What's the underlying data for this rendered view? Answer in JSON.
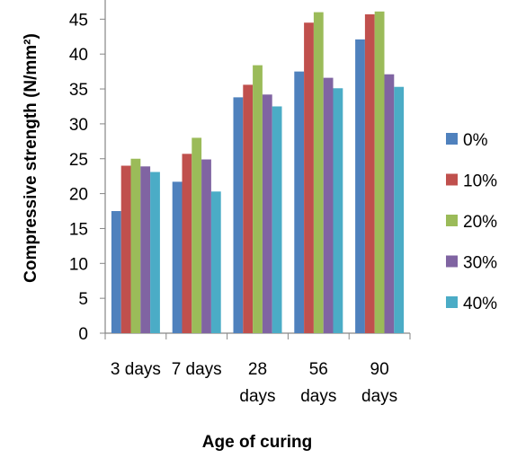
{
  "chart_data": {
    "type": "bar",
    "xlabel": "Age of curing",
    "ylabel": "Compressive strength (N/mm²)",
    "ylim": [
      0,
      45
    ],
    "y_ticks": [
      0,
      5,
      10,
      15,
      20,
      25,
      30,
      35,
      40,
      45
    ],
    "grid": false,
    "legend_position": "right",
    "categories": [
      [
        "3 days"
      ],
      [
        "7 days"
      ],
      [
        "28",
        "days"
      ],
      [
        "56",
        "days"
      ],
      [
        "90",
        "days"
      ]
    ],
    "series": [
      {
        "name": "0%",
        "color": "#4F81BD",
        "values": [
          17.5,
          21.7,
          33.8,
          37.5,
          42.1
        ]
      },
      {
        "name": "10%",
        "color": "#C0504D",
        "values": [
          24.0,
          25.7,
          35.6,
          44.5,
          45.7
        ]
      },
      {
        "name": "20%",
        "color": "#9BBB59",
        "values": [
          25.0,
          28.0,
          38.4,
          46.0,
          46.1
        ]
      },
      {
        "name": "30%",
        "color": "#8064A2",
        "values": [
          23.9,
          24.9,
          34.2,
          36.6,
          37.1
        ]
      },
      {
        "name": "40%",
        "color": "#4BACC6",
        "values": [
          23.1,
          20.3,
          32.5,
          35.1,
          35.3
        ]
      }
    ]
  }
}
